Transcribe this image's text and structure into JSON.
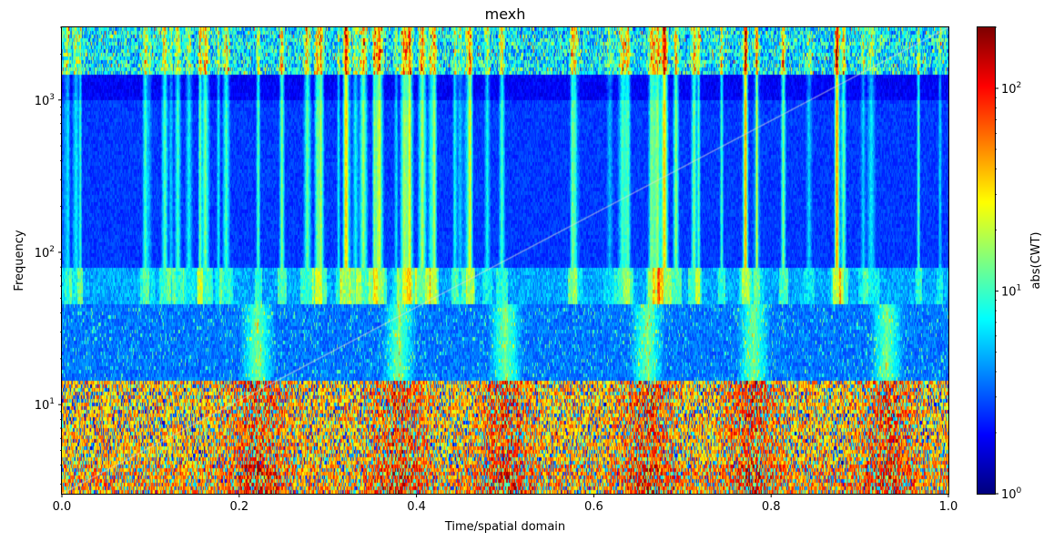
{
  "chart_data": {
    "type": "heatmap",
    "title": "mexh",
    "xlabel": "Time/spatial domain",
    "ylabel": "Frequency",
    "colorbar_label": "abs(CWT)",
    "colormap": "jet",
    "x_scale": "linear",
    "y_scale": "log",
    "color_scale": "log",
    "xlim": [
      0.0,
      1.0
    ],
    "ylim": [
      2.6,
      3000
    ],
    "clim": [
      1,
      200
    ],
    "x_ticks": [
      {
        "value": 0.0,
        "label": "0.0"
      },
      {
        "value": 0.2,
        "label": "0.2"
      },
      {
        "value": 0.4,
        "label": "0.4"
      },
      {
        "value": 0.6,
        "label": "0.6"
      },
      {
        "value": 0.8,
        "label": "0.8"
      },
      {
        "value": 1.0,
        "label": "1.0"
      }
    ],
    "y_ticks": [
      {
        "value": 10,
        "base": "10",
        "exp": "1"
      },
      {
        "value": 100,
        "base": "10",
        "exp": "2"
      },
      {
        "value": 1000,
        "base": "10",
        "exp": "3"
      }
    ],
    "cbar_ticks": [
      {
        "value": 1,
        "base": "10",
        "exp": "0"
      },
      {
        "value": 10,
        "base": "10",
        "exp": "1"
      },
      {
        "value": 100,
        "base": "10",
        "exp": "2"
      }
    ],
    "hotspot_times": [
      0.22,
      0.38,
      0.5,
      0.66,
      0.78,
      0.93
    ],
    "chirp_overlay": {
      "x": [
        0.0,
        1.0
      ],
      "y": [
        2.6,
        3000
      ],
      "color": "#dddddd"
    }
  }
}
